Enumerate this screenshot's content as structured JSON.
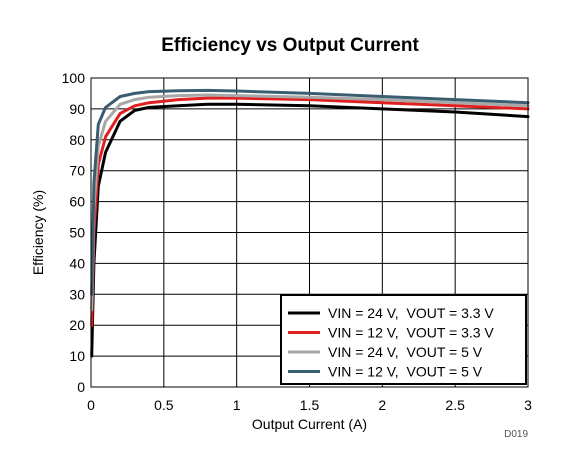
{
  "chart_data": {
    "type": "line",
    "title": "Efficiency vs Output Current",
    "xlabel": "Output Current (A)",
    "ylabel": "Efficiency (%)",
    "xlim": [
      0,
      3
    ],
    "ylim": [
      0,
      100
    ],
    "x_ticks": [
      "0",
      "0.5",
      "1",
      "1.5",
      "2",
      "2.5",
      "3"
    ],
    "y_ticks": [
      "0",
      "10",
      "20",
      "30",
      "40",
      "50",
      "60",
      "70",
      "80",
      "90",
      "100"
    ],
    "grid": true,
    "legend_position": "bottom-right",
    "figure_id": "D019",
    "series": [
      {
        "name": "VIN = 24 V,  VOUT = 3.3 V",
        "color": "#000000",
        "x": [
          0.005,
          0.02,
          0.05,
          0.1,
          0.2,
          0.3,
          0.4,
          0.6,
          0.8,
          1.0,
          1.5,
          2.0,
          2.5,
          3.0
        ],
        "y": [
          10,
          40,
          65,
          76,
          86,
          89.5,
          90.5,
          91,
          91.5,
          91.5,
          91,
          90,
          89,
          87.5
        ]
      },
      {
        "name": "VIN = 12 V,  VOUT = 3.3 V",
        "color": "#e02020",
        "x": [
          0.005,
          0.02,
          0.05,
          0.1,
          0.2,
          0.3,
          0.4,
          0.6,
          0.8,
          1.0,
          1.5,
          2.0,
          2.5,
          3.0
        ],
        "y": [
          20,
          50,
          72,
          81,
          88.5,
          91,
          92,
          93,
          93.5,
          93.5,
          93,
          92,
          91,
          90
        ]
      },
      {
        "name": "VIN = 24 V,  VOUT = 5 V",
        "color": "#a8a8a8",
        "x": [
          0.005,
          0.02,
          0.05,
          0.1,
          0.2,
          0.3,
          0.4,
          0.6,
          0.8,
          1.0,
          1.5,
          2.0,
          2.5,
          3.0
        ],
        "y": [
          25,
          58,
          78,
          86,
          91.5,
          93,
          93.8,
          94.3,
          94.5,
          94.3,
          93.8,
          93,
          92,
          91
        ]
      },
      {
        "name": "VIN = 12 V,  VOUT = 5 V",
        "color": "#3b5d70",
        "x": [
          0.005,
          0.02,
          0.05,
          0.1,
          0.2,
          0.3,
          0.4,
          0.6,
          0.8,
          1.0,
          1.5,
          2.0,
          2.5,
          3.0
        ],
        "y": [
          30,
          66,
          85,
          90.5,
          94,
          95,
          95.6,
          95.9,
          96,
          95.8,
          95,
          94,
          93,
          92
        ]
      }
    ]
  }
}
